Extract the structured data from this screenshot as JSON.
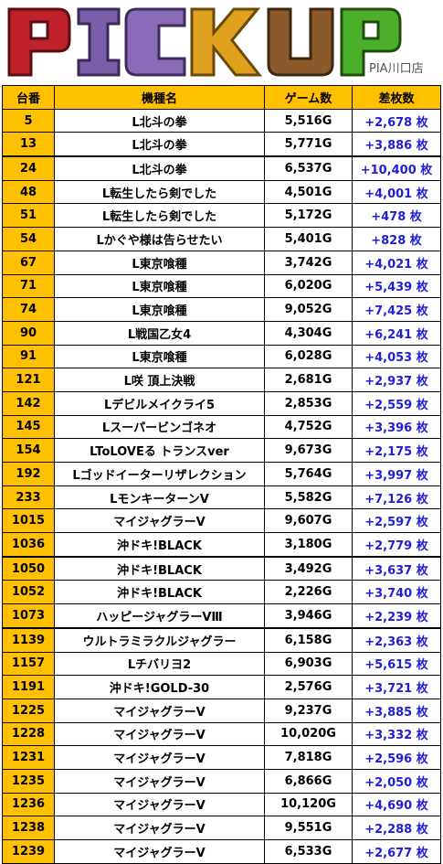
{
  "header": {
    "logo_text": "PICKUP",
    "store": "PIA川口店"
  },
  "colors": {
    "header_bg": "#ffc000",
    "number_bg": "#ffc000",
    "diff_text": "#1f1fd6",
    "logo_p": "#c0202a",
    "logo_i": "#7a5fa8",
    "logo_c": "#8a6bb8",
    "logo_k": "#e0a020",
    "logo_u": "#8b5a2b",
    "logo_p2": "#4caf2a"
  },
  "table": {
    "headers": [
      "台番",
      "機種名",
      "ゲーム数",
      "差枚数"
    ],
    "rows": [
      {
        "no": "5",
        "model": "L北斗の拳",
        "games": "5,516G",
        "diff": "+2,678 枚"
      },
      {
        "no": "13",
        "model": "L北斗の拳",
        "games": "5,771G",
        "diff": "+3,886 枚"
      },
      {
        "no": "24",
        "model": "L北斗の拳",
        "games": "6,537G",
        "diff": "+10,400 枚"
      },
      {
        "no": "48",
        "model": "L転生したら剣でした",
        "games": "4,501G",
        "diff": "+4,001 枚"
      },
      {
        "no": "51",
        "model": "L転生したら剣でした",
        "games": "5,172G",
        "diff": "+478 枚"
      },
      {
        "no": "54",
        "model": "Lかぐや様は告らせたい",
        "games": "5,401G",
        "diff": "+828 枚"
      },
      {
        "no": "67",
        "model": "L東京喰種",
        "games": "3,742G",
        "diff": "+4,021 枚"
      },
      {
        "no": "71",
        "model": "L東京喰種",
        "games": "6,020G",
        "diff": "+5,439 枚"
      },
      {
        "no": "74",
        "model": "L東京喰種",
        "games": "9,052G",
        "diff": "+7,425 枚"
      },
      {
        "no": "90",
        "model": "L戦国乙女4",
        "games": "4,304G",
        "diff": "+6,241 枚"
      },
      {
        "no": "91",
        "model": "L東京喰種",
        "games": "6,028G",
        "diff": "+4,053 枚"
      },
      {
        "no": "121",
        "model": "L咲 頂上決戦",
        "games": "2,681G",
        "diff": "+2,937 枚"
      },
      {
        "no": "142",
        "model": "Lデビルメイクライ5",
        "games": "2,853G",
        "diff": "+2,559 枚"
      },
      {
        "no": "145",
        "model": "Lスーパービンゴネオ",
        "games": "4,752G",
        "diff": "+3,396 枚"
      },
      {
        "no": "154",
        "model": "LToLOVEる トランスver",
        "games": "9,673G",
        "diff": "+2,175 枚"
      },
      {
        "no": "192",
        "model": "Lゴッドイーターリザレクション",
        "games": "5,764G",
        "diff": "+3,997 枚"
      },
      {
        "no": "233",
        "model": "LモンキーターンV",
        "games": "5,582G",
        "diff": "+7,126 枚"
      },
      {
        "no": "1015",
        "model": "マイジャグラーV",
        "games": "9,607G",
        "diff": "+2,597 枚"
      },
      {
        "no": "1036",
        "model": "沖ドキ!BLACK",
        "games": "3,180G",
        "diff": "+2,779 枚"
      },
      {
        "no": "1050",
        "model": "沖ドキ!BLACK",
        "games": "3,492G",
        "diff": "+3,637 枚"
      },
      {
        "no": "1052",
        "model": "沖ドキ!BLACK",
        "games": "2,226G",
        "diff": "+3,740 枚"
      },
      {
        "no": "1073",
        "model": "ハッピージャグラーVⅢ",
        "games": "3,946G",
        "diff": "+2,239 枚"
      },
      {
        "no": "1139",
        "model": "ウルトラミラクルジャグラー",
        "games": "6,158G",
        "diff": "+2,363 枚"
      },
      {
        "no": "1157",
        "model": "Lチバリヨ2",
        "games": "6,903G",
        "diff": "+5,615 枚"
      },
      {
        "no": "1191",
        "model": "沖ドキ!GOLD-30",
        "games": "2,576G",
        "diff": "+3,721 枚"
      },
      {
        "no": "1225",
        "model": "マイジャグラーV",
        "games": "9,237G",
        "diff": "+3,885 枚"
      },
      {
        "no": "1228",
        "model": "マイジャグラーV",
        "games": "10,020G",
        "diff": "+3,332 枚"
      },
      {
        "no": "1231",
        "model": "マイジャグラーV",
        "games": "7,818G",
        "diff": "+2,596 枚"
      },
      {
        "no": "1235",
        "model": "マイジャグラーV",
        "games": "6,866G",
        "diff": "+2,050 枚"
      },
      {
        "no": "1236",
        "model": "マイジャグラーV",
        "games": "10,120G",
        "diff": "+4,690 枚"
      },
      {
        "no": "1238",
        "model": "マイジャグラーV",
        "games": "9,551G",
        "diff": "+2,288 枚"
      },
      {
        "no": "1239",
        "model": "マイジャグラーV",
        "games": "6,533G",
        "diff": "+2,677 枚"
      }
    ]
  }
}
